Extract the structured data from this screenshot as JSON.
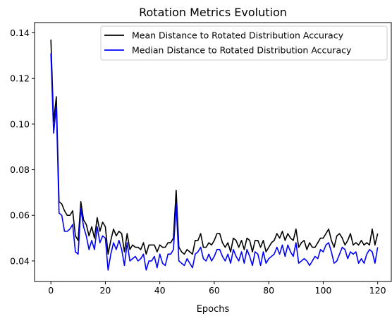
{
  "chart_data": {
    "type": "line",
    "title": "Rotation Metrics Evolution",
    "xlabel": "Epochs",
    "ylabel": "",
    "xlim": [
      -6,
      125
    ],
    "ylim": [
      0.031,
      0.1445
    ],
    "x_ticks": [
      0,
      20,
      40,
      60,
      80,
      100,
      120
    ],
    "y_ticks": [
      0.04,
      0.06,
      0.08,
      0.1,
      0.12,
      0.14
    ],
    "y_tick_labels": [
      "0.04",
      "0.06",
      "0.08",
      "0.10",
      "0.12",
      "0.14"
    ],
    "grid": false,
    "legend": "top-right",
    "series": [
      {
        "name": "Mean Distance to Rotated Distribution Accuracy",
        "color": "#000000",
        "values": [
          0.137,
          0.101,
          0.112,
          0.066,
          0.065,
          0.062,
          0.06,
          0.06,
          0.062,
          0.051,
          0.049,
          0.066,
          0.058,
          0.056,
          0.051,
          0.055,
          0.05,
          0.059,
          0.053,
          0.057,
          0.055,
          0.043,
          0.049,
          0.054,
          0.051,
          0.053,
          0.052,
          0.044,
          0.052,
          0.045,
          0.047,
          0.046,
          0.046,
          0.045,
          0.048,
          0.043,
          0.047,
          0.047,
          0.047,
          0.044,
          0.047,
          0.046,
          0.046,
          0.048,
          0.048,
          0.05,
          0.071,
          0.046,
          0.044,
          0.043,
          0.045,
          0.044,
          0.043,
          0.049,
          0.049,
          0.052,
          0.046,
          0.046,
          0.048,
          0.047,
          0.049,
          0.052,
          0.052,
          0.048,
          0.046,
          0.048,
          0.044,
          0.05,
          0.049,
          0.046,
          0.049,
          0.045,
          0.05,
          0.049,
          0.044,
          0.049,
          0.049,
          0.046,
          0.049,
          0.044,
          0.046,
          0.048,
          0.049,
          0.052,
          0.05,
          0.053,
          0.049,
          0.052,
          0.05,
          0.049,
          0.054,
          0.046,
          0.048,
          0.049,
          0.045,
          0.048,
          0.046,
          0.046,
          0.048,
          0.05,
          0.05,
          0.052,
          0.054,
          0.049,
          0.046,
          0.051,
          0.052,
          0.05,
          0.047,
          0.049,
          0.052,
          0.047,
          0.048,
          0.047,
          0.049,
          0.047,
          0.048,
          0.047,
          0.054,
          0.047,
          0.052
        ]
      },
      {
        "name": "Median Distance to Rotated Distribution Accuracy",
        "color": "#0000ff",
        "values": [
          0.131,
          0.096,
          0.108,
          0.061,
          0.06,
          0.053,
          0.053,
          0.054,
          0.056,
          0.044,
          0.043,
          0.063,
          0.055,
          0.051,
          0.045,
          0.049,
          0.045,
          0.055,
          0.048,
          0.051,
          0.05,
          0.036,
          0.043,
          0.048,
          0.045,
          0.049,
          0.045,
          0.038,
          0.048,
          0.04,
          0.041,
          0.042,
          0.04,
          0.041,
          0.043,
          0.036,
          0.04,
          0.04,
          0.042,
          0.037,
          0.043,
          0.039,
          0.038,
          0.043,
          0.043,
          0.045,
          0.065,
          0.04,
          0.039,
          0.038,
          0.041,
          0.039,
          0.037,
          0.043,
          0.044,
          0.046,
          0.041,
          0.04,
          0.043,
          0.04,
          0.042,
          0.045,
          0.045,
          0.042,
          0.04,
          0.043,
          0.039,
          0.045,
          0.042,
          0.04,
          0.044,
          0.039,
          0.045,
          0.042,
          0.038,
          0.044,
          0.043,
          0.038,
          0.044,
          0.039,
          0.041,
          0.042,
          0.043,
          0.046,
          0.043,
          0.047,
          0.042,
          0.047,
          0.044,
          0.042,
          0.048,
          0.039,
          0.04,
          0.041,
          0.04,
          0.038,
          0.04,
          0.042,
          0.041,
          0.045,
          0.044,
          0.047,
          0.048,
          0.044,
          0.039,
          0.04,
          0.043,
          0.046,
          0.045,
          0.041,
          0.044,
          0.043,
          0.044,
          0.039,
          0.041,
          0.039,
          0.043,
          0.045,
          0.044,
          0.039,
          0.046
        ]
      }
    ]
  }
}
